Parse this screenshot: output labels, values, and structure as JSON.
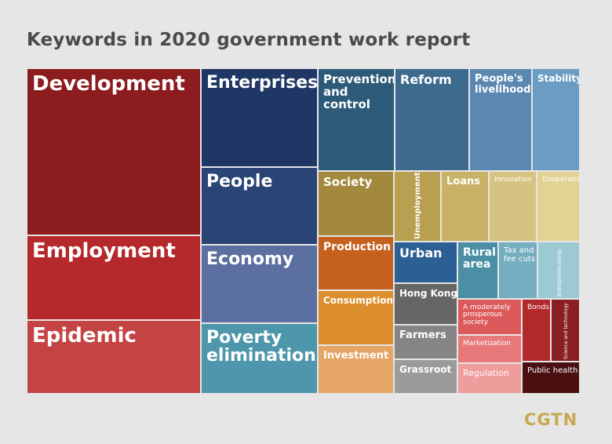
{
  "title": "Keywords in 2020 government work report",
  "brand": "CGTN",
  "chart_data": {
    "type": "treemap",
    "title": "Keywords in 2020 government work report",
    "items": [
      {
        "name": "Development",
        "color": "#8c1c1e",
        "label_color": "#ffffff"
      },
      {
        "name": "Employment",
        "color": "#b5282b",
        "label_color": "#ffffff"
      },
      {
        "name": "Epidemic",
        "color": "#c44444",
        "label_color": "#ffffff"
      },
      {
        "name": "Enterprises",
        "color": "#1e3764",
        "label_color": "#ffffff"
      },
      {
        "name": "People",
        "color": "#2a4476",
        "label_color": "#ffffff"
      },
      {
        "name": "Economy",
        "color": "#5b6fa0",
        "label_color": "#ffffff"
      },
      {
        "name": "Poverty elimination",
        "color": "#4e96ab",
        "label_color": "#ffffff"
      },
      {
        "name": "Prevention and control",
        "color": "#2d5a78",
        "label_color": "#ffffff"
      },
      {
        "name": "Reform",
        "color": "#3d6b8e",
        "label_color": "#ffffff"
      },
      {
        "name": "People's livelihood",
        "color": "#5a88b0",
        "label_color": "#ffffff"
      },
      {
        "name": "Stability",
        "color": "#6a9cc4",
        "label_color": "#ffffff"
      },
      {
        "name": "Society",
        "color": "#a2893e",
        "label_color": "#ffffff"
      },
      {
        "name": "Unemployment",
        "color": "#b8a050",
        "label_color": "#ffffff"
      },
      {
        "name": "Loans",
        "color": "#c9b265",
        "label_color": "#ffffff"
      },
      {
        "name": "Innovation",
        "color": "#d6c381",
        "label_color": "#ffffff"
      },
      {
        "name": "Cooperation",
        "color": "#e2d293",
        "label_color": "#ffffff"
      },
      {
        "name": "Production",
        "color": "#c6601f",
        "label_color": "#ffffff"
      },
      {
        "name": "Consumption",
        "color": "#dd8f2d",
        "label_color": "#ffffff"
      },
      {
        "name": "Investment",
        "color": "#e5a565",
        "label_color": "#ffffff"
      },
      {
        "name": "Urban",
        "color": "#2c5f94",
        "label_color": "#ffffff"
      },
      {
        "name": "Rural area",
        "color": "#4a8fa3",
        "label_color": "#ffffff"
      },
      {
        "name": "Tax and fee cuts",
        "color": "#74aec0",
        "label_color": "#ffffff"
      },
      {
        "name": "Entrepreneurship",
        "color": "#9ccad3",
        "label_color": "#ffffff"
      },
      {
        "name": "Hong Kong",
        "color": "#666666",
        "label_color": "#ffffff"
      },
      {
        "name": "Farmers",
        "color": "#858585",
        "label_color": "#ffffff"
      },
      {
        "name": "Grassroot",
        "color": "#9b9b9b",
        "label_color": "#ffffff"
      },
      {
        "name": "A moderately prosperous society",
        "color": "#dc5a5c",
        "label_color": "#ffffff"
      },
      {
        "name": "Marketization",
        "color": "#e7797a",
        "label_color": "#ffffff"
      },
      {
        "name": "Regulation",
        "color": "#ef9c9c",
        "label_color": "#ffffff"
      },
      {
        "name": "Bonds",
        "color": "#b2292c",
        "label_color": "#ffffff"
      },
      {
        "name": "Science and technology",
        "color": "#8a1f22",
        "label_color": "#ffffff"
      },
      {
        "name": "Public health",
        "color": "#4a1010",
        "label_color": "#ffffff"
      }
    ]
  }
}
